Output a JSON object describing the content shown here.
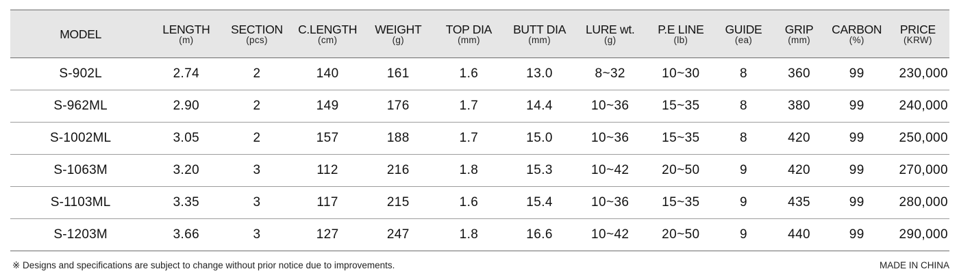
{
  "headers": [
    {
      "label": "MODEL",
      "unit": ""
    },
    {
      "label": "LENGTH",
      "unit": "(m)"
    },
    {
      "label": "SECTION",
      "unit": "(pcs)"
    },
    {
      "label": "C.LENGTH",
      "unit": "(cm)"
    },
    {
      "label": "WEIGHT",
      "unit": "(g)"
    },
    {
      "label": "TOP DIA",
      "unit": "(mm)"
    },
    {
      "label": "BUTT DIA",
      "unit": "(mm)"
    },
    {
      "label": "LURE wt.",
      "unit": "(g)"
    },
    {
      "label": "P.E LINE",
      "unit": "(lb)"
    },
    {
      "label": "GUIDE",
      "unit": "(ea)"
    },
    {
      "label": "GRIP",
      "unit": "(mm)"
    },
    {
      "label": "CARBON",
      "unit": "(%)"
    },
    {
      "label": "PRICE",
      "unit": "(KRW)"
    }
  ],
  "rows": [
    [
      "S-902L",
      "2.74",
      "2",
      "140",
      "161",
      "1.6",
      "13.0",
      "8~32",
      "10~30",
      "8",
      "360",
      "99",
      "230,000"
    ],
    [
      "S-962ML",
      "2.90",
      "2",
      "149",
      "176",
      "1.7",
      "14.4",
      "10~36",
      "15~35",
      "8",
      "380",
      "99",
      "240,000"
    ],
    [
      "S-1002ML",
      "3.05",
      "2",
      "157",
      "188",
      "1.7",
      "15.0",
      "10~36",
      "15~35",
      "8",
      "420",
      "99",
      "250,000"
    ],
    [
      "S-1063M",
      "3.20",
      "3",
      "112",
      "216",
      "1.8",
      "15.3",
      "10~42",
      "20~50",
      "9",
      "420",
      "99",
      "270,000"
    ],
    [
      "S-1103ML",
      "3.35",
      "3",
      "117",
      "215",
      "1.6",
      "15.4",
      "10~36",
      "15~35",
      "9",
      "435",
      "99",
      "280,000"
    ],
    [
      "S-1203M",
      "3.66",
      "3",
      "127",
      "247",
      "1.8",
      "16.6",
      "10~42",
      "20~50",
      "9",
      "440",
      "99",
      "290,000"
    ]
  ],
  "footer": {
    "note": "※ Designs and specifications are subject to change without prior notice due to improvements.",
    "origin": "MADE IN CHINA"
  }
}
